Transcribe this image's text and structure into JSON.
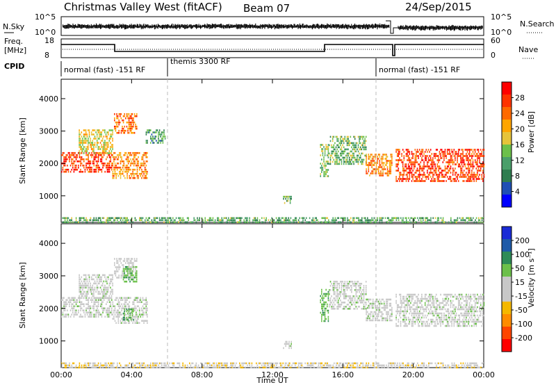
{
  "header": {
    "station": "Christmas Valley West (fitACF)",
    "beam": "Beam 07",
    "date": "24/Sep/2015"
  },
  "top_panels": {
    "nsky_label": "N.Sky",
    "nsky_ticks": [
      "10^5",
      "10^0"
    ],
    "nsearch_label": "N.Search",
    "nsearch_ticks": [
      "10^5",
      "10^0"
    ],
    "freq_label_1": "Freq.",
    "freq_label_2": "[MHz]",
    "freq_ticks": [
      "18",
      "8"
    ],
    "nave_label": "Nave",
    "nave_ticks": [
      "60",
      "0"
    ],
    "cpid_label": "CPID",
    "cpid_segments": [
      {
        "label": "normal (fast) -151 RF",
        "start_hour": 0,
        "end_hour": 6
      },
      {
        "label": "themis 3300 RF",
        "start_hour": 6,
        "end_hour": 18
      },
      {
        "label": "normal (fast) -151 RF",
        "start_hour": 18,
        "end_hour": 24
      }
    ]
  },
  "colors": {
    "power_scale": [
      "#0000ff",
      "#1f4fb4",
      "#2e7d4f",
      "#4a9f6a",
      "#6cc04a",
      "#e6c43a",
      "#ffa500",
      "#ff6a00",
      "#ff3300",
      "#ff0000"
    ],
    "velocity_scale": [
      "#1a2bd6",
      "#1e5aa8",
      "#2e8b57",
      "#6cc04a",
      "#c8c8c8",
      "#c8c8c8",
      "#f5b800",
      "#ff8c00",
      "#ff4500",
      "#ff0000"
    ],
    "ground_scatter": "#c8c8c8"
  },
  "chart_data": [
    {
      "type": "heatmap",
      "title": "",
      "xlabel": "",
      "ylabel": "Slant Range [km]",
      "xlim_hours": [
        0,
        24
      ],
      "ylim": [
        180,
        4600
      ],
      "y_ticks": [
        "1000",
        "2000",
        "3000",
        "4000"
      ],
      "colorbar_label": "Power [dB]",
      "colorbar_ticks": [
        "4",
        "8",
        "12",
        "16",
        "20",
        "24",
        "28"
      ],
      "clim": [
        0,
        32
      ],
      "echo_regions": [
        {
          "t0": 0.0,
          "t1": 2.9,
          "r0": 1750,
          "r1": 2350,
          "power": 27
        },
        {
          "t0": 1.0,
          "t1": 2.9,
          "r0": 2300,
          "r1": 3050,
          "power": 18
        },
        {
          "t0": 3.0,
          "t1": 4.3,
          "r0": 2950,
          "r1": 3550,
          "power": 24
        },
        {
          "t0": 2.9,
          "t1": 4.9,
          "r0": 1550,
          "r1": 2350,
          "power": 22
        },
        {
          "t0": 4.8,
          "t1": 5.9,
          "r0": 2650,
          "r1": 3050,
          "power": 10
        },
        {
          "t0": 12.6,
          "t1": 13.1,
          "r0": 750,
          "r1": 1000,
          "power": 13
        },
        {
          "t0": 14.7,
          "t1": 15.2,
          "r0": 1600,
          "r1": 2600,
          "power": 14
        },
        {
          "t0": 15.2,
          "t1": 17.3,
          "r0": 2000,
          "r1": 2850,
          "power": 13
        },
        {
          "t0": 17.3,
          "t1": 18.8,
          "r0": 1600,
          "r1": 2300,
          "power": 22
        },
        {
          "t0": 19.0,
          "t1": 24.0,
          "r0": 1450,
          "r1": 2450,
          "power": 27
        },
        {
          "t0": 0.0,
          "t1": 24.0,
          "r0": 180,
          "r1": 340,
          "power": 12
        }
      ]
    },
    {
      "type": "heatmap",
      "title": "",
      "xlabel": "Time UT",
      "ylabel": "Slant Range [km]",
      "xlim_hours": [
        0,
        24
      ],
      "ylim": [
        180,
        4600
      ],
      "x_ticks": [
        "00:00",
        "04:00",
        "08:00",
        "12:00",
        "16:00",
        "20:00",
        "00:00"
      ],
      "y_ticks": [
        "1000",
        "2000",
        "3000",
        "4000"
      ],
      "colorbar_label": "Velocity [m s⁻¹]",
      "colorbar_ticks": [
        "200",
        "100",
        "50",
        "15",
        "-15",
        "-50",
        "-100",
        "-200"
      ],
      "clim": [
        -250,
        250
      ],
      "echo_regions": [
        {
          "t0": 0.0,
          "t1": 2.9,
          "r0": 1750,
          "r1": 2350,
          "velocity": 0
        },
        {
          "t0": 1.0,
          "t1": 2.9,
          "r0": 2300,
          "r1": 3050,
          "velocity": 0
        },
        {
          "t0": 3.0,
          "t1": 4.3,
          "r0": 2950,
          "r1": 3550,
          "velocity": -30
        },
        {
          "t0": 3.5,
          "t1": 4.3,
          "r0": 2800,
          "r1": 3300,
          "velocity": 40
        },
        {
          "t0": 2.9,
          "t1": 4.9,
          "r0": 1550,
          "r1": 2350,
          "velocity": 0
        },
        {
          "t0": 3.5,
          "t1": 4.1,
          "r0": 1650,
          "r1": 2000,
          "velocity": 40
        },
        {
          "t0": 12.6,
          "t1": 13.1,
          "r0": 750,
          "r1": 1000,
          "velocity": 0
        },
        {
          "t0": 14.7,
          "t1": 15.2,
          "r0": 1600,
          "r1": 2600,
          "velocity": 40
        },
        {
          "t0": 15.2,
          "t1": 17.3,
          "r0": 2000,
          "r1": 2850,
          "velocity": 0
        },
        {
          "t0": 17.3,
          "t1": 18.8,
          "r0": 1600,
          "r1": 2300,
          "velocity": 0
        },
        {
          "t0": 19.0,
          "t1": 24.0,
          "r0": 1450,
          "r1": 2450,
          "velocity": 0
        },
        {
          "t0": 0.0,
          "t1": 24.0,
          "r0": 180,
          "r1": 340,
          "velocity": -40
        }
      ]
    }
  ]
}
